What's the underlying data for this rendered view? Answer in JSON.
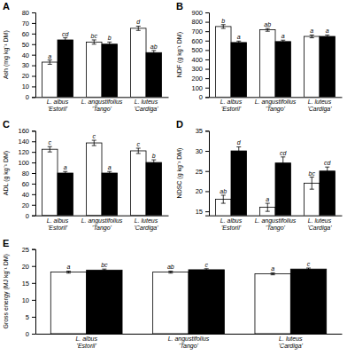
{
  "chart_data": [
    {
      "type": "bar",
      "title": "A",
      "y_label": "Ash (mg kg⁻¹ DM)",
      "categories": [
        "L. albus\n'Estoril'",
        "L. angustifolius\n'Tango'",
        "L. luteus\n'Cardiga'"
      ],
      "series": [
        {
          "color": "white",
          "values": [
            33,
            52,
            65
          ],
          "errors": [
            2,
            2,
            2
          ],
          "annotations": [
            "a",
            "bc",
            "d"
          ]
        },
        {
          "color": "black",
          "values": [
            54,
            50,
            42
          ],
          "errors": [
            2,
            2,
            2
          ],
          "annotations": [
            "cd",
            "b",
            "ab"
          ]
        }
      ],
      "ylim": [
        0,
        80
      ],
      "yticks": [
        0,
        10,
        20,
        30,
        40,
        50,
        60,
        70,
        80
      ],
      "grid": false
    },
    {
      "type": "bar",
      "title": "B",
      "y_label": "NDF (g kg⁻¹ DM)",
      "categories": [
        "L. albus\n'Estoril'",
        "L. angustifolius\n'Tango'",
        "L. luteus\n'Cardiga'"
      ],
      "series": [
        {
          "color": "white",
          "values": [
            750,
            715,
            645
          ],
          "errors": [
            20,
            15,
            15
          ],
          "annotations": [
            "b",
            "ab",
            "a"
          ]
        },
        {
          "color": "black",
          "values": [
            580,
            590,
            645
          ],
          "errors": [
            15,
            15,
            15
          ],
          "annotations": [
            "a",
            "a",
            "a"
          ]
        }
      ],
      "ylim": [
        0,
        900
      ],
      "yticks": [
        0,
        100,
        200,
        300,
        400,
        500,
        600,
        700,
        800,
        900
      ],
      "grid": false
    },
    {
      "type": "bar",
      "title": "C",
      "y_label": "ADL (g kg⁻¹ DM)",
      "categories": [
        "L. albus\n'Estoril'",
        "L. angustifolius\n'Tango'",
        "L. luteus\n'Cardiga'"
      ],
      "series": [
        {
          "color": "white",
          "values": [
            125,
            137,
            122
          ],
          "errors": [
            5,
            5,
            5
          ],
          "annotations": [
            "c",
            "c",
            "c"
          ]
        },
        {
          "color": "black",
          "values": [
            80,
            80,
            100
          ],
          "errors": [
            3,
            3,
            5
          ],
          "annotations": [
            "a",
            "a",
            "b"
          ]
        }
      ],
      "ylim": [
        0,
        160
      ],
      "yticks": [
        0,
        20,
        40,
        60,
        80,
        100,
        120,
        140,
        160
      ],
      "grid": false
    },
    {
      "type": "bar",
      "title": "D",
      "y_label": "NDSC (g kg⁻¹ DM)",
      "categories": [
        "L. albus\n'Estoril'",
        "L. angustifolius\n'Tango'",
        "L. luteus\n'Cardiga'"
      ],
      "series": [
        {
          "color": "white",
          "values": [
            18,
            16,
            22
          ],
          "errors": [
            1,
            1,
            1.5
          ],
          "annotations": [
            "ab",
            "a",
            "bc"
          ]
        },
        {
          "color": "black",
          "values": [
            30,
            27,
            25
          ],
          "errors": [
            1,
            1.5,
            1
          ],
          "annotations": [
            "d",
            "cd",
            "cd"
          ]
        }
      ],
      "ylim": [
        14,
        35
      ],
      "yticks": [
        15,
        20,
        25,
        30,
        35
      ],
      "grid": false
    },
    {
      "type": "bar",
      "title": "E",
      "y_label": "Gross energy (MJ kg⁻¹ DM)",
      "categories": [
        "L. albus\n'Estoril'",
        "L. angustifolius\n'Tango'",
        "L. luteus\n'Cardiga'"
      ],
      "series": [
        {
          "color": "white",
          "values": [
            18.2,
            18.2,
            17.7
          ],
          "errors": [
            0.3,
            0.3,
            0.3
          ],
          "annotations": [
            "a",
            "ab",
            "a"
          ]
        },
        {
          "color": "black",
          "values": [
            18.8,
            18.9,
            19.1
          ],
          "errors": [
            0.3,
            0.3,
            0.3
          ],
          "annotations": [
            "bc",
            "c",
            "c"
          ]
        }
      ],
      "ylim": [
        0,
        25
      ],
      "yticks": [
        0,
        5,
        10,
        15,
        20,
        25
      ],
      "grid": false
    }
  ]
}
